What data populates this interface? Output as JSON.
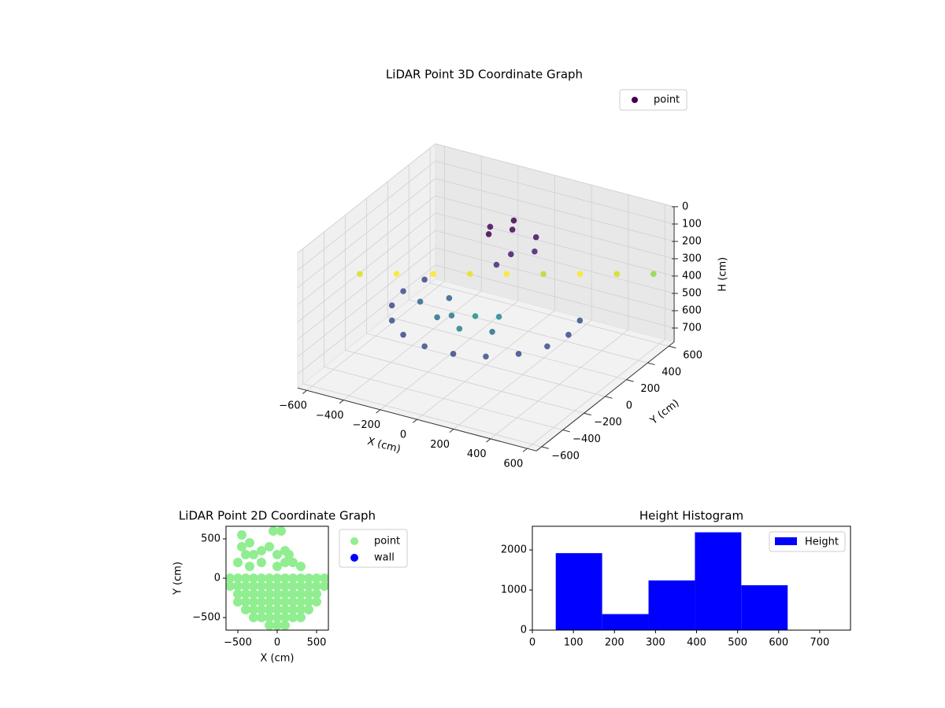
{
  "chart_data": [
    {
      "type": "scatter3d",
      "title": "LiDAR Point 3D Coordinate Graph",
      "xlabel": "X (cm)",
      "ylabel": "Y (cm)",
      "zlabel": "H (cm)",
      "xlim": [
        -650,
        650
      ],
      "ylim": [
        -650,
        650
      ],
      "zlim": [
        0,
        780
      ],
      "zinvert": true,
      "xticks": [
        {
          "value": -600,
          "label": "−600"
        },
        {
          "value": -400,
          "label": "−400"
        },
        {
          "value": -200,
          "label": "−200"
        },
        0,
        200,
        400,
        600
      ],
      "yticks": [
        {
          "value": -600,
          "label": "−600"
        },
        {
          "value": -400,
          "label": "−400"
        },
        {
          "value": -200,
          "label": "−200"
        },
        0,
        200,
        400,
        600
      ],
      "zticks": [
        0,
        100,
        200,
        300,
        400,
        500,
        600,
        700
      ],
      "legend": "upper right",
      "series": [
        {
          "name": "point",
          "x": [
            -100,
            0,
            100,
            50,
            -50,
            150,
            -150,
            0,
            -600,
            -450,
            -300,
            -150,
            0,
            150,
            300,
            450,
            600,
            -300,
            -150,
            0,
            150,
            -200,
            0,
            100,
            -100,
            -423,
            -450,
            -423,
            -345,
            -225,
            -78,
            78,
            225,
            345,
            423,
            450,
            423
          ],
          "y": [
            200,
            250,
            300,
            150,
            350,
            200,
            300,
            100,
            -150,
            -63,
            23,
            110,
            196,
            283,
            369,
            456,
            542,
            -100,
            -200,
            -250,
            -200,
            0,
            -100,
            -50,
            -150,
            154,
            0,
            -154,
            -289,
            -390,
            -443,
            -443,
            -390,
            -289,
            -154,
            0,
            154
          ],
          "z": [
            150,
            120,
            160,
            200,
            130,
            180,
            170,
            250,
            350,
            350,
            350,
            350,
            350,
            350,
            350,
            350,
            350,
            450,
            450,
            450,
            450,
            450,
            450,
            450,
            450,
            480,
            480,
            480,
            480,
            480,
            480,
            480,
            480,
            480,
            480,
            480,
            480
          ],
          "colors": [
            "#440154",
            "#46085c",
            "#471063",
            "#481a6c",
            "#440154",
            "#482173",
            "#46085c",
            "#472a7a",
            "#d8e219",
            "#fde725",
            "#fde725",
            "#e5e419",
            "#fde725",
            "#b5de2b",
            "#fde725",
            "#d0e11c",
            "#8fd744",
            "#31688e",
            "#2c728e",
            "#26828e",
            "#2c728e",
            "#33638d",
            "#21918c",
            "#228c8d",
            "#2a788e",
            "#3e4989",
            "#3b528b",
            "#3e4989",
            "#3b528b",
            "#3e4989",
            "#3b528b",
            "#3e4989",
            "#3b528b",
            "#3e4989",
            "#3b528b",
            "#3e4989",
            "#3b528b"
          ]
        }
      ]
    },
    {
      "type": "scatter",
      "title": "LiDAR Point 2D Coordinate Graph",
      "xlabel": "X (cm)",
      "ylabel": "Y (cm)",
      "xlim": [
        -650,
        650
      ],
      "ylim": [
        -660,
        660
      ],
      "xticks": [
        {
          "value": -500,
          "label": "−500"
        },
        0,
        500
      ],
      "yticks": [
        {
          "value": -500,
          "label": "−500"
        },
        0,
        500
      ],
      "legend": "outside right",
      "series": [
        {
          "name": "point",
          "color": "#90ee90",
          "x": [
            -600,
            -500,
            -400,
            -300,
            -200,
            -100,
            0,
            100,
            200,
            300,
            400,
            500,
            600,
            -600,
            -500,
            -400,
            -300,
            -200,
            -100,
            0,
            100,
            200,
            300,
            400,
            500,
            600,
            -500,
            -400,
            -300,
            -200,
            -100,
            0,
            100,
            200,
            300,
            400,
            500,
            -500,
            -400,
            -300,
            -200,
            -100,
            0,
            100,
            200,
            300,
            400,
            500,
            -400,
            -300,
            -200,
            -100,
            0,
            100,
            200,
            300,
            400,
            -300,
            -200,
            -100,
            0,
            100,
            200,
            300,
            -100,
            0,
            100,
            -450,
            -450,
            -350,
            -300,
            -400,
            -200,
            -100,
            0,
            100,
            -50,
            50,
            150,
            200,
            -500,
            300,
            -200,
            0,
            100,
            -350
          ],
          "y": [
            0,
            0,
            0,
            0,
            0,
            0,
            0,
            0,
            0,
            0,
            0,
            0,
            0,
            -100,
            -100,
            -100,
            -100,
            -100,
            -100,
            -100,
            -100,
            -100,
            -100,
            -100,
            -100,
            -100,
            -200,
            -200,
            -200,
            -200,
            -200,
            -200,
            -200,
            -200,
            -200,
            -200,
            -200,
            -300,
            -300,
            -300,
            -300,
            -300,
            -300,
            -300,
            -300,
            -300,
            -300,
            -300,
            -400,
            -400,
            -400,
            -400,
            -400,
            -400,
            -400,
            -400,
            -400,
            -500,
            -500,
            -500,
            -500,
            -500,
            -500,
            -500,
            -600,
            -600,
            -600,
            550,
            400,
            450,
            300,
            300,
            350,
            400,
            300,
            350,
            600,
            600,
            300,
            200,
            200,
            150,
            200,
            150,
            200,
            150
          ]
        },
        {
          "name": "wall",
          "color": "#0000ff",
          "x": [],
          "y": []
        }
      ]
    },
    {
      "type": "histogram",
      "title": "Height Histogram",
      "name": "Height",
      "color": "#0000ff",
      "bins": [
        57,
        170,
        283,
        396,
        509,
        622
      ],
      "values": [
        1920,
        400,
        1240,
        2440,
        1120
      ],
      "xlim": [
        0,
        775
      ],
      "ylim": [
        0,
        2590
      ],
      "xticks": [
        0,
        100,
        200,
        300,
        400,
        500,
        600,
        700
      ],
      "yticks": [
        0,
        1000,
        2000
      ],
      "legend": "upper right"
    }
  ]
}
